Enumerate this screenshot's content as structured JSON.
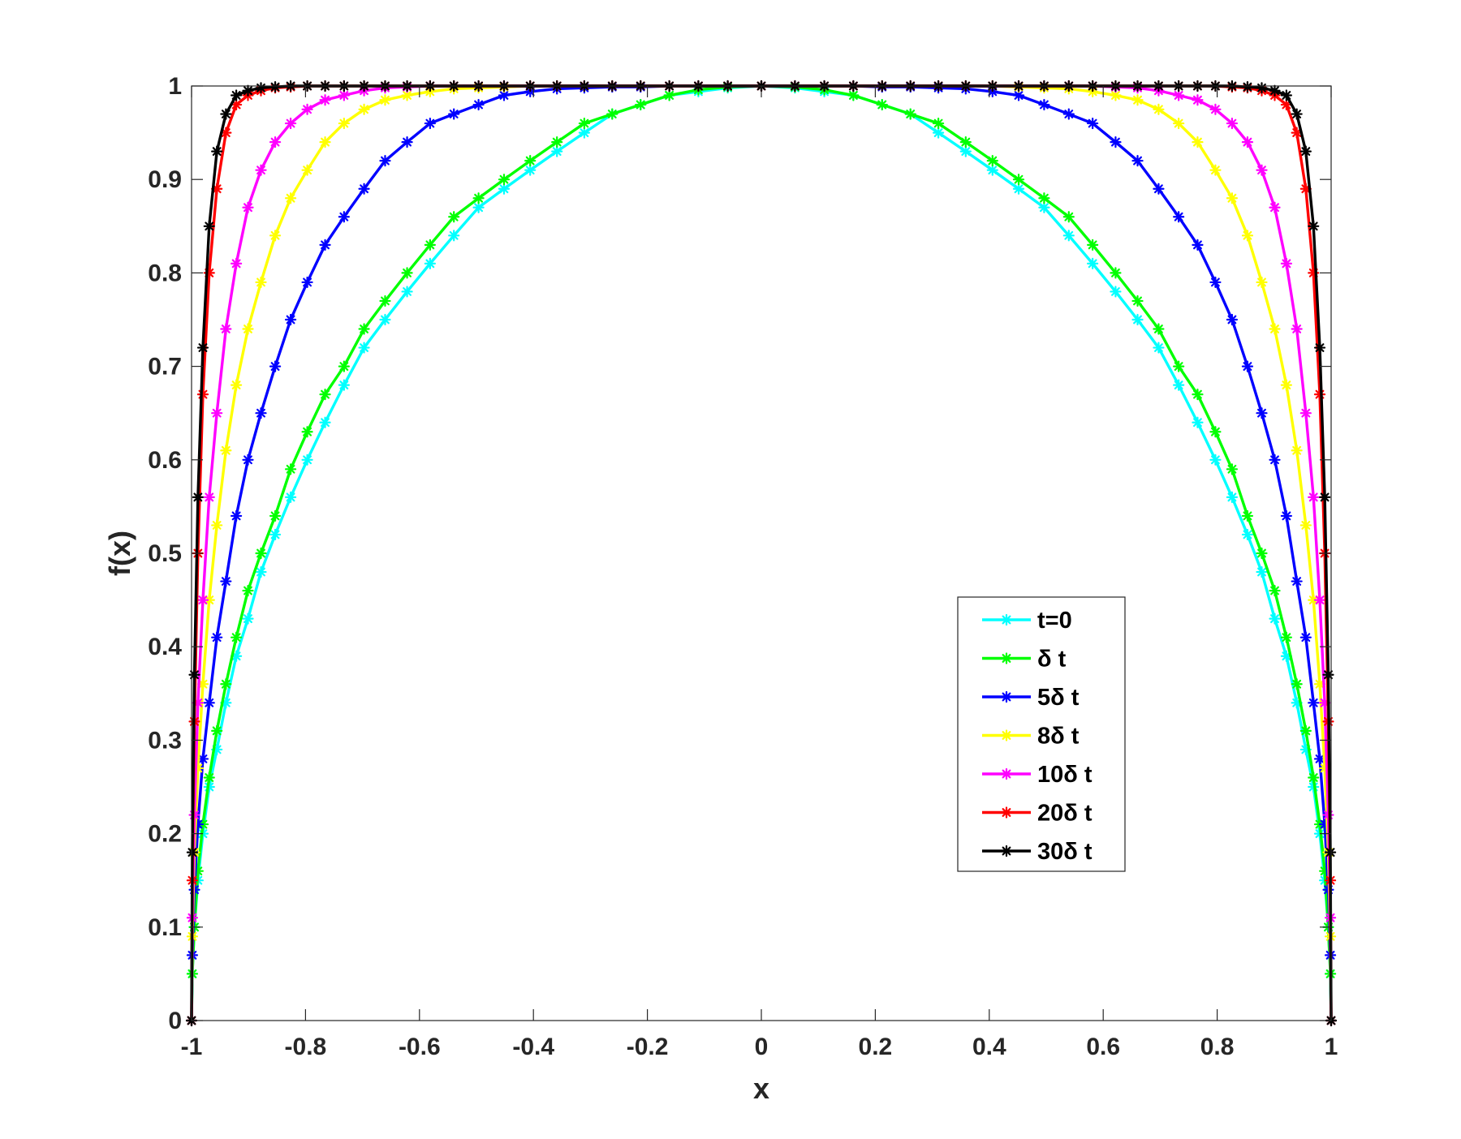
{
  "chart_data": {
    "type": "line",
    "xlabel": "x",
    "ylabel": "f(x)",
    "xlim": [
      -1,
      1
    ],
    "ylim": [
      0,
      1
    ],
    "x_ticks": [
      {
        "value": -1,
        "label": "-1"
      },
      {
        "value": -0.8,
        "label": "-0.8"
      },
      {
        "value": -0.6,
        "label": "-0.6"
      },
      {
        "value": -0.4,
        "label": "-0.4"
      },
      {
        "value": -0.2,
        "label": "-0.2"
      },
      {
        "value": 0,
        "label": "0"
      },
      {
        "value": 0.2,
        "label": "0.2"
      },
      {
        "value": 0.4,
        "label": "0.4"
      },
      {
        "value": 0.6,
        "label": "0.6"
      },
      {
        "value": 0.8,
        "label": "0.8"
      },
      {
        "value": 1,
        "label": "1"
      }
    ],
    "y_ticks": [
      {
        "value": 0,
        "label": "0"
      },
      {
        "value": 0.1,
        "label": "0.1"
      },
      {
        "value": 0.2,
        "label": "0.2"
      },
      {
        "value": 0.3,
        "label": "0.3"
      },
      {
        "value": 0.4,
        "label": "0.4"
      },
      {
        "value": 0.5,
        "label": "0.5"
      },
      {
        "value": 0.6,
        "label": "0.6"
      },
      {
        "value": 0.7,
        "label": "0.7"
      },
      {
        "value": 0.8,
        "label": "0.8"
      },
      {
        "value": 0.9,
        "label": "0.9"
      },
      {
        "value": 1,
        "label": "1"
      }
    ],
    "grid": false,
    "legend_position": "lower-right",
    "marker": "asterisk",
    "series": [
      {
        "name": "t=0",
        "color": "#00ffff",
        "x": [
          -1,
          -0.9987,
          -0.995,
          -0.9888,
          -0.9801,
          -0.969,
          -0.9556,
          -0.9397,
          -0.9215,
          -0.901,
          -0.8782,
          -0.8532,
          -0.8261,
          -0.7969,
          -0.7656,
          -0.7324,
          -0.6972,
          -0.6603,
          -0.6217,
          -0.5814,
          -0.5396,
          -0.4963,
          -0.4516,
          -0.4057,
          -0.3587,
          -0.3107,
          -0.2617,
          -0.2119,
          -0.1615,
          -0.1105,
          -0.059,
          0,
          0.059,
          0.1105,
          0.1615,
          0.2119,
          0.2617,
          0.3107,
          0.3587,
          0.4057,
          0.4516,
          0.4963,
          0.5396,
          0.5814,
          0.6217,
          0.6603,
          0.6972,
          0.7324,
          0.7656,
          0.7969,
          0.8261,
          0.8532,
          0.8782,
          0.901,
          0.9215,
          0.9397,
          0.9556,
          0.969,
          0.9801,
          0.9888,
          0.995,
          0.9987,
          1
        ],
        "values": [
          0,
          0.05,
          0.1,
          0.15,
          0.2,
          0.25,
          0.29,
          0.34,
          0.39,
          0.43,
          0.48,
          0.52,
          0.56,
          0.6,
          0.64,
          0.68,
          0.72,
          0.75,
          0.78,
          0.81,
          0.84,
          0.87,
          0.89,
          0.91,
          0.93,
          0.95,
          0.97,
          0.98,
          0.99,
          0.994,
          0.998,
          1,
          0.998,
          0.994,
          0.99,
          0.98,
          0.97,
          0.95,
          0.93,
          0.91,
          0.89,
          0.87,
          0.84,
          0.81,
          0.78,
          0.75,
          0.72,
          0.68,
          0.64,
          0.6,
          0.56,
          0.52,
          0.48,
          0.43,
          0.39,
          0.34,
          0.29,
          0.25,
          0.2,
          0.15,
          0.1,
          0.05,
          0
        ]
      },
      {
        "name": "δ t",
        "color": "#00ff00",
        "x": [
          -1,
          -0.9987,
          -0.995,
          -0.9888,
          -0.9801,
          -0.969,
          -0.9556,
          -0.9397,
          -0.9215,
          -0.901,
          -0.8782,
          -0.8532,
          -0.8261,
          -0.7969,
          -0.7656,
          -0.7324,
          -0.6972,
          -0.6603,
          -0.6217,
          -0.5814,
          -0.5396,
          -0.4963,
          -0.4516,
          -0.4057,
          -0.3587,
          -0.3107,
          -0.2617,
          -0.2119,
          -0.1615,
          -0.1105,
          -0.059,
          0,
          0.059,
          0.1105,
          0.1615,
          0.2119,
          0.2617,
          0.3107,
          0.3587,
          0.4057,
          0.4516,
          0.4963,
          0.5396,
          0.5814,
          0.6217,
          0.6603,
          0.6972,
          0.7324,
          0.7656,
          0.7969,
          0.8261,
          0.8532,
          0.8782,
          0.901,
          0.9215,
          0.9397,
          0.9556,
          0.969,
          0.9801,
          0.9888,
          0.995,
          0.9987,
          1
        ],
        "values": [
          0,
          0.05,
          0.1,
          0.16,
          0.21,
          0.26,
          0.31,
          0.36,
          0.41,
          0.46,
          0.5,
          0.54,
          0.59,
          0.63,
          0.67,
          0.7,
          0.74,
          0.77,
          0.8,
          0.83,
          0.86,
          0.88,
          0.9,
          0.92,
          0.94,
          0.96,
          0.97,
          0.98,
          0.99,
          0.996,
          0.999,
          1,
          0.999,
          0.996,
          0.99,
          0.98,
          0.97,
          0.96,
          0.94,
          0.92,
          0.9,
          0.88,
          0.86,
          0.83,
          0.8,
          0.77,
          0.74,
          0.7,
          0.67,
          0.63,
          0.59,
          0.54,
          0.5,
          0.46,
          0.41,
          0.36,
          0.31,
          0.26,
          0.21,
          0.16,
          0.1,
          0.05,
          0
        ]
      },
      {
        "name": "5δ t",
        "color": "#0000ff",
        "x": [
          -1,
          -0.9987,
          -0.995,
          -0.9888,
          -0.9801,
          -0.969,
          -0.9556,
          -0.9397,
          -0.9215,
          -0.901,
          -0.8782,
          -0.8532,
          -0.8261,
          -0.7969,
          -0.7656,
          -0.7324,
          -0.6972,
          -0.6603,
          -0.6217,
          -0.5814,
          -0.5396,
          -0.4963,
          -0.4516,
          -0.4057,
          -0.3587,
          -0.3107,
          -0.2617,
          -0.2119,
          -0.1615,
          -0.1105,
          -0.059,
          0,
          0.059,
          0.1105,
          0.1615,
          0.2119,
          0.2617,
          0.3107,
          0.3587,
          0.4057,
          0.4516,
          0.4963,
          0.5396,
          0.5814,
          0.6217,
          0.6603,
          0.6972,
          0.7324,
          0.7656,
          0.7969,
          0.8261,
          0.8532,
          0.8782,
          0.901,
          0.9215,
          0.9397,
          0.9556,
          0.969,
          0.9801,
          0.9888,
          0.995,
          0.9987,
          1
        ],
        "values": [
          0,
          0.07,
          0.14,
          0.21,
          0.28,
          0.34,
          0.41,
          0.47,
          0.54,
          0.6,
          0.65,
          0.7,
          0.75,
          0.79,
          0.83,
          0.86,
          0.89,
          0.92,
          0.94,
          0.96,
          0.97,
          0.98,
          0.99,
          0.994,
          0.997,
          0.998,
          0.999,
          0.999,
          1,
          1,
          1,
          1,
          1,
          1,
          1,
          0.999,
          0.999,
          0.998,
          0.997,
          0.994,
          0.99,
          0.98,
          0.97,
          0.96,
          0.94,
          0.92,
          0.89,
          0.86,
          0.83,
          0.79,
          0.75,
          0.7,
          0.65,
          0.6,
          0.54,
          0.47,
          0.41,
          0.34,
          0.28,
          0.21,
          0.14,
          0.07,
          0
        ]
      },
      {
        "name": "8δ t",
        "color": "#ffff00",
        "x": [
          -1,
          -0.9987,
          -0.995,
          -0.9888,
          -0.9801,
          -0.969,
          -0.9556,
          -0.9397,
          -0.9215,
          -0.901,
          -0.8782,
          -0.8532,
          -0.8261,
          -0.7969,
          -0.7656,
          -0.7324,
          -0.6972,
          -0.6603,
          -0.6217,
          -0.5814,
          -0.5396,
          -0.4963,
          -0.4516,
          -0.4057,
          -0.3587,
          -0.3107,
          -0.2617,
          -0.2119,
          -0.1615,
          -0.1105,
          -0.059,
          0,
          0.059,
          0.1105,
          0.1615,
          0.2119,
          0.2617,
          0.3107,
          0.3587,
          0.4057,
          0.4516,
          0.4963,
          0.5396,
          0.5814,
          0.6217,
          0.6603,
          0.6972,
          0.7324,
          0.7656,
          0.7969,
          0.8261,
          0.8532,
          0.8782,
          0.901,
          0.9215,
          0.9397,
          0.9556,
          0.969,
          0.9801,
          0.9888,
          0.995,
          0.9987,
          1
        ],
        "values": [
          0,
          0.09,
          0.18,
          0.27,
          0.36,
          0.45,
          0.53,
          0.61,
          0.68,
          0.74,
          0.79,
          0.84,
          0.88,
          0.91,
          0.94,
          0.96,
          0.975,
          0.985,
          0.99,
          0.994,
          0.997,
          0.998,
          0.999,
          1,
          1,
          1,
          1,
          1,
          1,
          1,
          1,
          1,
          1,
          1,
          1,
          1,
          1,
          1,
          1,
          1,
          0.999,
          0.998,
          0.997,
          0.994,
          0.99,
          0.985,
          0.975,
          0.96,
          0.94,
          0.91,
          0.88,
          0.84,
          0.79,
          0.74,
          0.68,
          0.61,
          0.53,
          0.45,
          0.36,
          0.27,
          0.18,
          0.09,
          0
        ]
      },
      {
        "name": "10δ t",
        "color": "#ff00ff",
        "x": [
          -1,
          -0.9987,
          -0.995,
          -0.9888,
          -0.9801,
          -0.969,
          -0.9556,
          -0.9397,
          -0.9215,
          -0.901,
          -0.8782,
          -0.8532,
          -0.8261,
          -0.7969,
          -0.7656,
          -0.7324,
          -0.6972,
          -0.6603,
          -0.6217,
          -0.5814,
          -0.5396,
          -0.4963,
          -0.4516,
          -0.4057,
          -0.3587,
          -0.3107,
          -0.2617,
          -0.2119,
          -0.1615,
          -0.1105,
          -0.059,
          0,
          0.059,
          0.1105,
          0.1615,
          0.2119,
          0.2617,
          0.3107,
          0.3587,
          0.4057,
          0.4516,
          0.4963,
          0.5396,
          0.5814,
          0.6217,
          0.6603,
          0.6972,
          0.7324,
          0.7656,
          0.7969,
          0.8261,
          0.8532,
          0.8782,
          0.901,
          0.9215,
          0.9397,
          0.9556,
          0.969,
          0.9801,
          0.9888,
          0.995,
          0.9987,
          1
        ],
        "values": [
          0,
          0.11,
          0.22,
          0.34,
          0.45,
          0.56,
          0.65,
          0.74,
          0.81,
          0.87,
          0.91,
          0.94,
          0.96,
          0.975,
          0.985,
          0.99,
          0.995,
          0.998,
          0.999,
          1,
          1,
          1,
          1,
          1,
          1,
          1,
          1,
          1,
          1,
          1,
          1,
          1,
          1,
          1,
          1,
          1,
          1,
          1,
          1,
          1,
          1,
          1,
          1,
          1,
          0.999,
          0.998,
          0.995,
          0.99,
          0.985,
          0.975,
          0.96,
          0.94,
          0.91,
          0.87,
          0.81,
          0.74,
          0.65,
          0.56,
          0.45,
          0.34,
          0.22,
          0.11,
          0
        ]
      },
      {
        "name": "20δ t",
        "color": "#ff0000",
        "x": [
          -1,
          -0.9987,
          -0.995,
          -0.9888,
          -0.9801,
          -0.969,
          -0.9556,
          -0.9397,
          -0.9215,
          -0.901,
          -0.8782,
          -0.8532,
          -0.8261,
          -0.7969,
          -0.7656,
          -0.7324,
          -0.6972,
          -0.6603,
          -0.6217,
          -0.5814,
          -0.5396,
          -0.4963,
          -0.4516,
          -0.4057,
          -0.3587,
          -0.3107,
          -0.2617,
          -0.2119,
          -0.1615,
          -0.1105,
          -0.059,
          0,
          0.059,
          0.1105,
          0.1615,
          0.2119,
          0.2617,
          0.3107,
          0.3587,
          0.4057,
          0.4516,
          0.4963,
          0.5396,
          0.5814,
          0.6217,
          0.6603,
          0.6972,
          0.7324,
          0.7656,
          0.7969,
          0.8261,
          0.8532,
          0.8782,
          0.901,
          0.9215,
          0.9397,
          0.9556,
          0.969,
          0.9801,
          0.9888,
          0.995,
          0.9987,
          1
        ],
        "values": [
          0,
          0.15,
          0.32,
          0.5,
          0.67,
          0.8,
          0.89,
          0.95,
          0.98,
          0.99,
          0.995,
          0.998,
          0.999,
          1,
          1,
          1,
          1,
          1,
          1,
          1,
          1,
          1,
          1,
          1,
          1,
          1,
          1,
          1,
          1,
          1,
          1,
          1,
          1,
          1,
          1,
          1,
          1,
          1,
          1,
          1,
          1,
          1,
          1,
          1,
          1,
          1,
          1,
          1,
          1,
          1,
          0.999,
          0.998,
          0.995,
          0.99,
          0.98,
          0.95,
          0.89,
          0.8,
          0.67,
          0.5,
          0.32,
          0.15,
          0
        ]
      },
      {
        "name": "30δ t",
        "color": "#000000",
        "x": [
          -1,
          -0.9987,
          -0.995,
          -0.9888,
          -0.9801,
          -0.969,
          -0.9556,
          -0.9397,
          -0.9215,
          -0.901,
          -0.8782,
          -0.8532,
          -0.8261,
          -0.7969,
          -0.7656,
          -0.7324,
          -0.6972,
          -0.6603,
          -0.6217,
          -0.5814,
          -0.5396,
          -0.4963,
          -0.4516,
          -0.4057,
          -0.3587,
          -0.3107,
          -0.2617,
          -0.2119,
          -0.1615,
          -0.1105,
          -0.059,
          0,
          0.059,
          0.1105,
          0.1615,
          0.2119,
          0.2617,
          0.3107,
          0.3587,
          0.4057,
          0.4516,
          0.4963,
          0.5396,
          0.5814,
          0.6217,
          0.6603,
          0.6972,
          0.7324,
          0.7656,
          0.7969,
          0.8261,
          0.8532,
          0.8782,
          0.901,
          0.9215,
          0.9397,
          0.9556,
          0.969,
          0.9801,
          0.9888,
          0.995,
          0.9987,
          1
        ],
        "values": [
          0,
          0.18,
          0.37,
          0.56,
          0.72,
          0.85,
          0.93,
          0.97,
          0.99,
          0.995,
          0.998,
          0.999,
          1,
          1,
          1,
          1,
          1,
          1,
          1,
          1,
          1,
          1,
          1,
          1,
          1,
          1,
          1,
          1,
          1,
          1,
          1,
          1,
          1,
          1,
          1,
          1,
          1,
          1,
          1,
          1,
          1,
          1,
          1,
          1,
          1,
          1,
          1,
          1,
          1,
          1,
          1,
          0.999,
          0.998,
          0.995,
          0.99,
          0.97,
          0.93,
          0.85,
          0.72,
          0.56,
          0.37,
          0.18,
          0
        ]
      }
    ]
  }
}
